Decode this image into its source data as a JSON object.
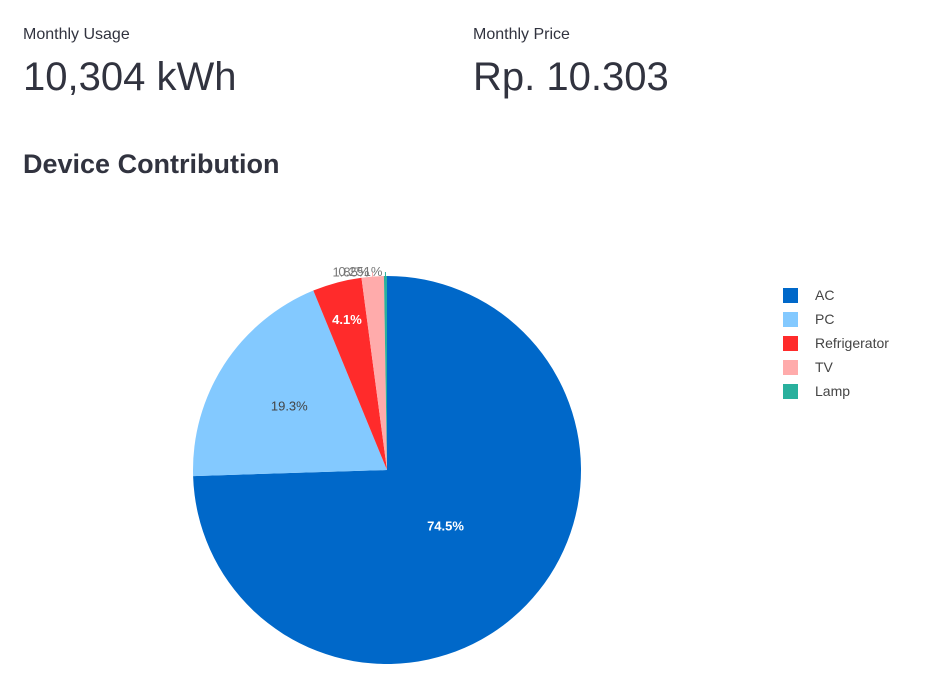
{
  "metrics": {
    "usage": {
      "label": "Monthly Usage",
      "value": "10,304 kWh"
    },
    "price": {
      "label": "Monthly Price",
      "value": "Rp. 10.303"
    }
  },
  "section": {
    "title": "Device Contribution"
  },
  "chart_data": {
    "type": "pie",
    "title": "",
    "legend_position": "right",
    "slices": [
      {
        "name": "AC",
        "value": 74.5,
        "label": "74.5%",
        "color": "#0068c9"
      },
      {
        "name": "PC",
        "value": 19.3,
        "label": "19.3%",
        "color": "#83c9ff"
      },
      {
        "name": "Refrigerator",
        "value": 4.1,
        "label": "4.1%",
        "color": "#ff2b2b"
      },
      {
        "name": "TV",
        "value": 1.85,
        "label": "1.85%",
        "color": "#ffabab"
      },
      {
        "name": "Lamp",
        "value": 0.251,
        "label": "0.251%",
        "color": "#29b09d"
      }
    ]
  }
}
